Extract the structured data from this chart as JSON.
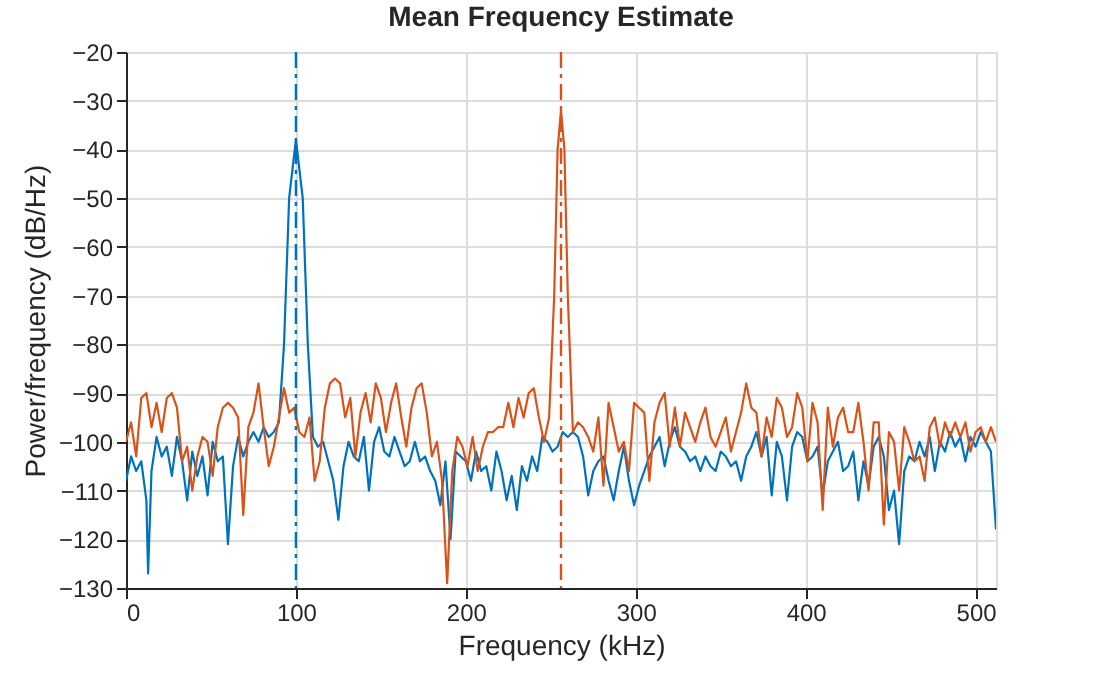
{
  "chart_data": {
    "type": "line",
    "title": "Mean Frequency Estimate",
    "xlabel": "Frequency (kHz)",
    "ylabel": "Power/frequency (dB/Hz)",
    "xlim": [
      0,
      512
    ],
    "xticks": [
      0,
      100,
      200,
      300,
      400,
      500
    ],
    "ylim": [
      -130,
      -20
    ],
    "yticks": [
      -130,
      -120,
      -110,
      -100,
      -90,
      -80,
      -70,
      -60,
      -50,
      -40,
      -30,
      -20
    ],
    "grid": true,
    "marker": "none",
    "line_style": "solid",
    "series": [
      {
        "color": "#0072bd",
        "x": [
          0,
          3,
          6,
          9,
          12,
          13,
          15,
          18,
          21,
          24,
          27,
          30,
          33,
          36,
          39,
          42,
          45,
          48,
          51,
          54,
          57,
          60,
          63,
          66,
          69,
          72,
          75,
          78,
          81,
          84,
          87,
          90,
          93,
          96,
          100,
          104,
          107,
          110,
          113,
          116,
          119,
          122,
          125,
          128,
          131,
          134,
          137,
          140,
          143,
          146,
          149,
          152,
          155,
          158,
          161,
          164,
          167,
          170,
          173,
          176,
          179,
          182,
          185,
          188,
          191,
          194,
          197,
          200,
          203,
          206,
          209,
          212,
          215,
          218,
          221,
          224,
          227,
          230,
          233,
          236,
          239,
          242,
          245,
          248,
          251,
          254,
          257,
          260,
          263,
          266,
          269,
          272,
          275,
          278,
          281,
          284,
          287,
          290,
          293,
          296,
          299,
          302,
          305,
          308,
          311,
          314,
          317,
          320,
          323,
          326,
          329,
          332,
          335,
          338,
          341,
          344,
          347,
          350,
          353,
          356,
          359,
          362,
          365,
          368,
          371,
          374,
          377,
          380,
          383,
          386,
          389,
          392,
          395,
          398,
          401,
          404,
          407,
          410,
          413,
          416,
          419,
          422,
          425,
          428,
          431,
          434,
          437,
          440,
          443,
          446,
          449,
          452,
          455,
          458,
          461,
          464,
          467,
          470,
          473,
          476,
          479,
          482,
          485,
          488,
          491,
          494,
          497,
          500,
          503,
          506,
          509,
          512
        ],
        "values": [
          -108,
          -103,
          -106,
          -104,
          -112,
          -127,
          -106,
          -99,
          -103,
          -101,
          -107,
          -99,
          -104,
          -112,
          -102,
          -107,
          -103,
          -111,
          -100,
          -104,
          -103,
          -121,
          -105,
          -99,
          -103,
          -100,
          -98,
          -100,
          -97,
          -99,
          -98,
          -96,
          -80,
          -50,
          -38,
          -50,
          -80,
          -99,
          -101,
          -100,
          -104,
          -108,
          -116,
          -105,
          -100,
          -103,
          -104,
          -99,
          -110,
          -100,
          -97,
          -102,
          -103,
          -99,
          -102,
          -105,
          -104,
          -100,
          -104,
          -103,
          -106,
          -108,
          -113,
          -104,
          -120,
          -102,
          -103,
          -104,
          -108,
          -102,
          -106,
          -105,
          -110,
          -102,
          -106,
          -112,
          -107,
          -114,
          -105,
          -108,
          -103,
          -106,
          -99,
          -100,
          -102,
          -101,
          -98,
          -99,
          -98,
          -99,
          -103,
          -111,
          -106,
          -104,
          -103,
          -108,
          -112,
          -106,
          -101,
          -108,
          -113,
          -109,
          -106,
          -103,
          -101,
          -99,
          -105,
          -100,
          -97,
          -101,
          -102,
          -104,
          -103,
          -106,
          -103,
          -105,
          -106,
          -102,
          -103,
          -105,
          -104,
          -108,
          -103,
          -101,
          -98,
          -103,
          -99,
          -111,
          -100,
          -103,
          -112,
          -101,
          -98,
          -99,
          -104,
          -103,
          -101,
          -111,
          -104,
          -102,
          -100,
          -106,
          -105,
          -102,
          -112,
          -104,
          -109,
          -101,
          -99,
          -103,
          -114,
          -110,
          -121,
          -106,
          -103,
          -104,
          -100,
          -103,
          -99,
          -106,
          -100,
          -102,
          -98,
          -101,
          -99,
          -104,
          -99,
          -101,
          -98,
          -100,
          -102,
          -118
        ]
      },
      {
        "color": "#d95319",
        "x": [
          0,
          3,
          6,
          9,
          12,
          15,
          18,
          21,
          24,
          27,
          30,
          33,
          36,
          39,
          42,
          45,
          48,
          51,
          54,
          57,
          60,
          63,
          66,
          69,
          72,
          75,
          78,
          81,
          84,
          87,
          90,
          93,
          96,
          99,
          102,
          105,
          108,
          111,
          114,
          117,
          120,
          123,
          126,
          129,
          132,
          135,
          138,
          141,
          144,
          147,
          150,
          153,
          156,
          159,
          162,
          165,
          168,
          171,
          174,
          177,
          180,
          183,
          186,
          189,
          192,
          195,
          198,
          201,
          204,
          207,
          210,
          213,
          216,
          219,
          222,
          225,
          228,
          231,
          234,
          237,
          240,
          243,
          246,
          249,
          252,
          254,
          256,
          258,
          260,
          263,
          266,
          269,
          272,
          275,
          278,
          281,
          284,
          287,
          290,
          293,
          296,
          299,
          302,
          305,
          308,
          311,
          314,
          317,
          320,
          323,
          326,
          329,
          332,
          335,
          338,
          341,
          344,
          347,
          350,
          353,
          356,
          359,
          362,
          365,
          368,
          371,
          374,
          377,
          380,
          383,
          386,
          389,
          392,
          395,
          398,
          401,
          404,
          407,
          410,
          413,
          416,
          419,
          422,
          425,
          428,
          431,
          434,
          437,
          440,
          443,
          446,
          449,
          452,
          455,
          458,
          461,
          464,
          467,
          470,
          473,
          476,
          479,
          482,
          485,
          488,
          491,
          494,
          497,
          500,
          503,
          506,
          509,
          512
        ],
        "values": [
          -100,
          -96,
          -103,
          -91,
          -90,
          -97,
          -92,
          -98,
          -91,
          -90,
          -93,
          -104,
          -101,
          -110,
          -103,
          -99,
          -100,
          -107,
          -97,
          -93,
          -92,
          -93,
          -95,
          -115,
          -97,
          -94,
          -88,
          -97,
          -105,
          -101,
          -95,
          -89,
          -94,
          -93,
          -98,
          -99,
          -95,
          -108,
          -104,
          -93,
          -88,
          -87,
          -88,
          -95,
          -91,
          -103,
          -94,
          -90,
          -96,
          -88,
          -91,
          -98,
          -92,
          -88,
          -95,
          -101,
          -93,
          -89,
          -88,
          -94,
          -103,
          -100,
          -108,
          -129,
          -106,
          -99,
          -101,
          -105,
          -99,
          -106,
          -101,
          -98,
          -98,
          -97,
          -97,
          -92,
          -97,
          -91,
          -95,
          -90,
          -89,
          -95,
          -100,
          -95,
          -70,
          -40,
          -32,
          -40,
          -70,
          -98,
          -96,
          -97,
          -99,
          -102,
          -95,
          -109,
          -92,
          -97,
          -102,
          -100,
          -106,
          -92,
          -93,
          -94,
          -108,
          -96,
          -92,
          -90,
          -101,
          -93,
          -101,
          -94,
          -97,
          -100,
          -96,
          -93,
          -99,
          -101,
          -98,
          -95,
          -102,
          -98,
          -94,
          -88,
          -93,
          -94,
          -103,
          -95,
          -99,
          -91,
          -93,
          -99,
          -97,
          -90,
          -93,
          -104,
          -92,
          -96,
          -114,
          -93,
          -101,
          -95,
          -93,
          -98,
          -98,
          -92,
          -100,
          -110,
          -96,
          -96,
          -117,
          -98,
          -100,
          -110,
          -97,
          -100,
          -104,
          -103,
          -108,
          -97,
          -95,
          -101,
          -96,
          -99,
          -96,
          -99,
          -96,
          -102,
          -98,
          -97,
          -100,
          -97,
          -100
        ]
      }
    ],
    "ref_lines": [
      {
        "axis": "x",
        "value": 100,
        "color": "#0072bd",
        "line_style": "dashed"
      },
      {
        "axis": "x",
        "value": 256,
        "color": "#d95319",
        "line_style": "dashed"
      }
    ]
  }
}
